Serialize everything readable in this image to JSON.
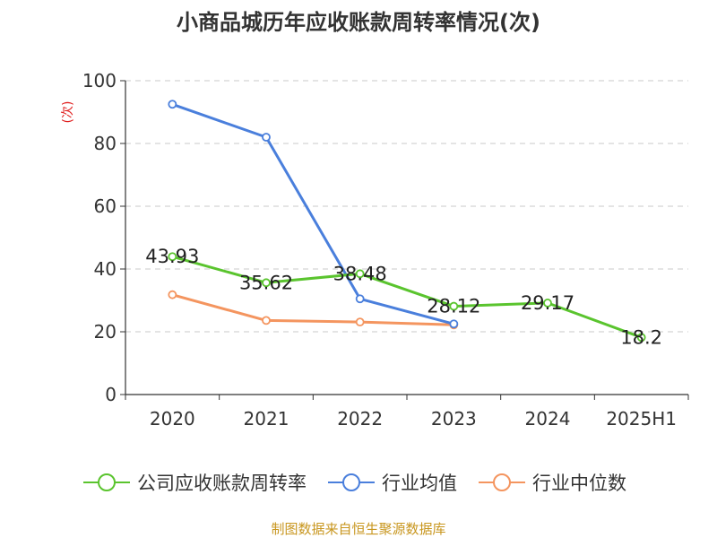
{
  "chart_data": {
    "type": "line",
    "title": "小商品城历年应收账款周转率情况(次)",
    "ylabel": "(次)",
    "xlabel": "",
    "categories": [
      "2020",
      "2021",
      "2022",
      "2023",
      "2024",
      "2025H1"
    ],
    "ylim": [
      0,
      100
    ],
    "yticks": [
      0,
      20,
      40,
      60,
      80,
      100
    ],
    "grid": true,
    "legend_position": "bottom",
    "series": [
      {
        "name": "公司应收账款周转率",
        "color": "#5ac42e",
        "values": [
          43.93,
          35.62,
          38.48,
          28.12,
          29.17,
          18.2
        ],
        "labels": [
          "43.93",
          "35.62",
          "38.48",
          "28.12",
          "29.17",
          "18.2"
        ]
      },
      {
        "name": "行业均值",
        "color": "#4a7fdc",
        "values": [
          92.5,
          82,
          30.5,
          22.5,
          null,
          null
        ]
      },
      {
        "name": "行业中位数",
        "color": "#f4955f",
        "values": [
          31.8,
          23.6,
          23.1,
          22.2,
          null,
          null
        ]
      }
    ]
  },
  "source": "制图数据来自恒生聚源数据库"
}
